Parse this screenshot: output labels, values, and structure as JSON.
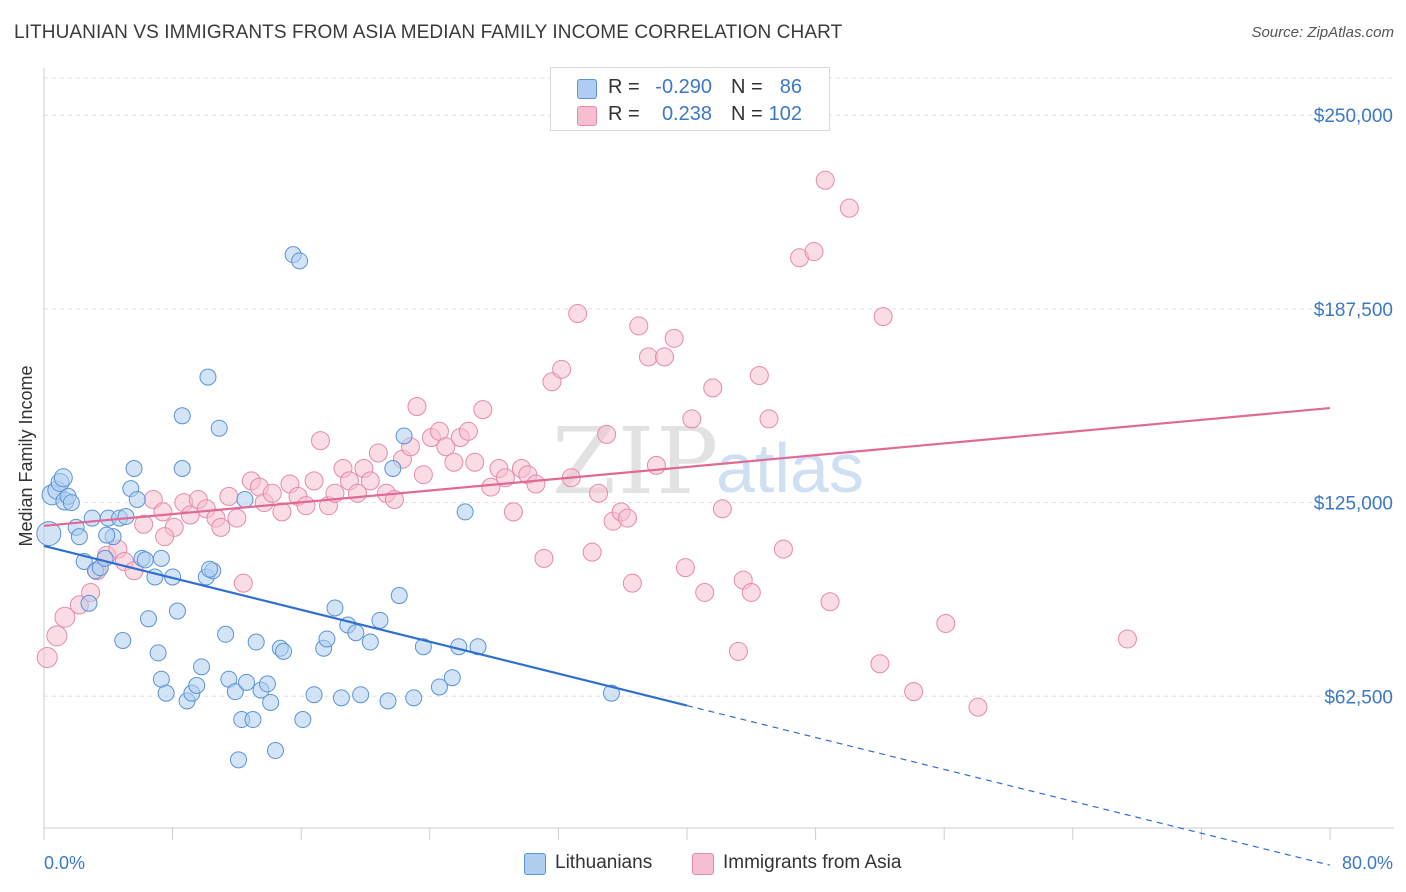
{
  "title": "LITHUANIAN VS IMMIGRANTS FROM ASIA MEDIAN FAMILY INCOME CORRELATION CHART",
  "source": "Source: ZipAtlas.com",
  "watermark": {
    "zip": "ZIP",
    "atlas": "atlas"
  },
  "legend_top": [
    {
      "r_label": "R =",
      "r_value": "-0.290",
      "n_label": "N =",
      "n_value": "86",
      "color": "#aecdf0"
    },
    {
      "r_label": "R =",
      "r_value": "0.238",
      "n_label": "N =",
      "n_value": "102",
      "color": "#f6bfd0"
    }
  ],
  "legend_bottom": [
    {
      "label": "Lithuanians",
      "color": "#aecdf0"
    },
    {
      "label": "Immigrants from Asia",
      "color": "#f6bfd0"
    }
  ],
  "chart_data": {
    "type": "scatter",
    "title": "LITHUANIAN VS IMMIGRANTS FROM ASIA MEDIAN FAMILY INCOME CORRELATION CHART",
    "ylabel": "Median Family Income",
    "xlabel": "",
    "xlim": [
      0,
      80
    ],
    "ylim": [
      20000,
      262000
    ],
    "x_tick_labels": [
      "0.0%",
      "80.0%"
    ],
    "y_ticks": [
      62500,
      125000,
      187500,
      250000
    ],
    "y_tick_labels": [
      "$62,500",
      "$125,000",
      "$187,500",
      "$250,000"
    ],
    "grid": "horizontal dashed",
    "legend_position": "top-center",
    "colors": {
      "lith_fill": "#aecdf0",
      "lith_stroke": "#5b93d6",
      "lith_line": "#2f6fd0",
      "asia_fill": "#f6bfd0",
      "asia_stroke": "#e68aaa",
      "asia_line": "#e06a94"
    },
    "series": [
      {
        "name": "Lithuanians",
        "r": -0.29,
        "n": 86,
        "trend": {
          "x0": 0,
          "y0": 111000,
          "x1": 40,
          "y1": 59500,
          "dash_to_x": 80,
          "dash_to_y": 8000
        },
        "points": [
          [
            0.3,
            115000,
            12
          ],
          [
            0.5,
            127500,
            10
          ],
          [
            0.8,
            129000,
            9
          ],
          [
            1.0,
            131500,
            9
          ],
          [
            1.2,
            133000,
            9
          ],
          [
            1.3,
            125500,
            9
          ],
          [
            1.5,
            127000,
            8
          ],
          [
            1.7,
            125000,
            8
          ],
          [
            2.0,
            117000,
            8
          ],
          [
            2.2,
            114000,
            8
          ],
          [
            2.5,
            106000,
            8
          ],
          [
            2.8,
            92500,
            8
          ],
          [
            3.0,
            120000,
            8
          ],
          [
            3.2,
            103000,
            8
          ],
          [
            3.5,
            104000,
            8
          ],
          [
            3.8,
            107000,
            8
          ],
          [
            4.0,
            120000,
            8
          ],
          [
            4.3,
            114000,
            8
          ],
          [
            4.7,
            120000,
            8
          ],
          [
            4.9,
            80500,
            8
          ],
          [
            5.4,
            129500,
            8
          ],
          [
            5.6,
            136000,
            8
          ],
          [
            5.8,
            126000,
            8
          ],
          [
            6.1,
            107000,
            8
          ],
          [
            6.3,
            106500,
            8
          ],
          [
            6.5,
            87500,
            8
          ],
          [
            6.9,
            101000,
            8
          ],
          [
            7.1,
            76500,
            8
          ],
          [
            7.3,
            68000,
            8
          ],
          [
            7.6,
            63500,
            8
          ],
          [
            8.0,
            101000,
            8
          ],
          [
            8.3,
            90000,
            8
          ],
          [
            8.6,
            153000,
            8
          ],
          [
            8.9,
            61000,
            8
          ],
          [
            9.2,
            63500,
            8
          ],
          [
            9.5,
            66000,
            8
          ],
          [
            9.8,
            72000,
            8
          ],
          [
            10.1,
            101000,
            8
          ],
          [
            10.2,
            165500,
            8
          ],
          [
            10.5,
            103000,
            8
          ],
          [
            10.9,
            149000,
            8
          ],
          [
            11.3,
            82500,
            8
          ],
          [
            11.5,
            68000,
            8
          ],
          [
            11.9,
            64000,
            8
          ],
          [
            12.1,
            42000,
            8
          ],
          [
            12.3,
            55000,
            8
          ],
          [
            12.6,
            67000,
            8
          ],
          [
            13.0,
            55000,
            8
          ],
          [
            13.2,
            80000,
            8
          ],
          [
            13.5,
            64500,
            8
          ],
          [
            13.9,
            66500,
            8
          ],
          [
            14.1,
            60500,
            8
          ],
          [
            14.4,
            45000,
            8
          ],
          [
            14.7,
            78000,
            8
          ],
          [
            14.9,
            77000,
            8
          ],
          [
            15.5,
            205000,
            8
          ],
          [
            15.9,
            203000,
            8
          ],
          [
            16.1,
            55000,
            8
          ],
          [
            16.8,
            63000,
            8
          ],
          [
            17.4,
            78000,
            8
          ],
          [
            17.6,
            81000,
            8
          ],
          [
            18.1,
            91000,
            8
          ],
          [
            18.5,
            62000,
            8
          ],
          [
            18.9,
            85500,
            8
          ],
          [
            19.4,
            83000,
            8
          ],
          [
            19.7,
            63000,
            8
          ],
          [
            20.3,
            80000,
            8
          ],
          [
            20.9,
            87000,
            8
          ],
          [
            21.4,
            61000,
            8
          ],
          [
            21.7,
            136000,
            8
          ],
          [
            22.1,
            95000,
            8
          ],
          [
            22.4,
            146500,
            8
          ],
          [
            23.0,
            62000,
            8
          ],
          [
            23.6,
            78500,
            8
          ],
          [
            24.6,
            65500,
            8
          ],
          [
            25.4,
            68500,
            8
          ],
          [
            25.8,
            78500,
            8
          ],
          [
            26.2,
            122000,
            8
          ],
          [
            27.0,
            78500,
            8
          ],
          [
            35.3,
            63500,
            8
          ],
          [
            7.3,
            107000,
            8
          ],
          [
            5.1,
            120500,
            8
          ],
          [
            3.9,
            114500,
            8
          ],
          [
            8.6,
            136000,
            8
          ],
          [
            10.3,
            103500,
            8
          ],
          [
            12.5,
            126000,
            8
          ]
        ]
      },
      {
        "name": "Immigrants from Asia",
        "r": 0.238,
        "n": 102,
        "trend": {
          "x0": 0,
          "y0": 117500,
          "x1": 80,
          "y1": 155500
        },
        "points": [
          [
            0.2,
            75000,
            10
          ],
          [
            0.8,
            82000,
            10
          ],
          [
            1.3,
            88000,
            10
          ],
          [
            2.2,
            92000,
            9
          ],
          [
            2.9,
            96000,
            9
          ],
          [
            3.3,
            103000,
            9
          ],
          [
            3.9,
            108000,
            9
          ],
          [
            4.6,
            110000,
            9
          ],
          [
            5.0,
            106000,
            9
          ],
          [
            5.6,
            103000,
            9
          ],
          [
            6.2,
            118000,
            9
          ],
          [
            6.8,
            126000,
            9
          ],
          [
            7.4,
            122000,
            9
          ],
          [
            8.1,
            117000,
            9
          ],
          [
            8.7,
            125000,
            9
          ],
          [
            9.1,
            121000,
            9
          ],
          [
            9.6,
            126000,
            9
          ],
          [
            10.1,
            123000,
            9
          ],
          [
            10.7,
            120000,
            9
          ],
          [
            11.0,
            117000,
            9
          ],
          [
            11.5,
            127000,
            9
          ],
          [
            12.0,
            120000,
            9
          ],
          [
            12.4,
            99000,
            9
          ],
          [
            12.9,
            132000,
            9
          ],
          [
            13.4,
            130000,
            9
          ],
          [
            13.7,
            125000,
            9
          ],
          [
            14.2,
            128000,
            9
          ],
          [
            14.8,
            122000,
            9
          ],
          [
            15.3,
            131000,
            9
          ],
          [
            15.8,
            127000,
            9
          ],
          [
            16.3,
            124000,
            9
          ],
          [
            16.8,
            132000,
            9
          ],
          [
            17.2,
            145000,
            9
          ],
          [
            17.7,
            124000,
            9
          ],
          [
            18.1,
            128000,
            9
          ],
          [
            18.6,
            136000,
            9
          ],
          [
            19.0,
            132000,
            9
          ],
          [
            19.5,
            128000,
            9
          ],
          [
            19.9,
            136000,
            9
          ],
          [
            20.3,
            132000,
            9
          ],
          [
            20.8,
            141000,
            9
          ],
          [
            21.3,
            128000,
            9
          ],
          [
            21.8,
            126000,
            9
          ],
          [
            22.3,
            139000,
            9
          ],
          [
            22.8,
            143000,
            9
          ],
          [
            23.2,
            156000,
            9
          ],
          [
            23.6,
            134000,
            9
          ],
          [
            24.1,
            146000,
            9
          ],
          [
            24.6,
            148000,
            9
          ],
          [
            25.0,
            143000,
            9
          ],
          [
            25.5,
            138000,
            9
          ],
          [
            25.9,
            146000,
            9
          ],
          [
            26.4,
            148000,
            9
          ],
          [
            26.8,
            138000,
            9
          ],
          [
            27.3,
            155000,
            9
          ],
          [
            27.8,
            130000,
            9
          ],
          [
            28.3,
            136000,
            9
          ],
          [
            28.7,
            133000,
            9
          ],
          [
            29.2,
            122000,
            9
          ],
          [
            29.7,
            136000,
            9
          ],
          [
            30.1,
            134000,
            9
          ],
          [
            30.6,
            131000,
            9
          ],
          [
            31.1,
            107000,
            9
          ],
          [
            31.6,
            164000,
            9
          ],
          [
            32.2,
            168000,
            9
          ],
          [
            32.8,
            133000,
            9
          ],
          [
            33.2,
            186000,
            9
          ],
          [
            34.1,
            109000,
            9
          ],
          [
            34.5,
            128000,
            9
          ],
          [
            35.0,
            147000,
            9
          ],
          [
            35.4,
            119000,
            9
          ],
          [
            35.9,
            122000,
            9
          ],
          [
            36.6,
            99000,
            9
          ],
          [
            37.0,
            182000,
            9
          ],
          [
            37.6,
            172000,
            9
          ],
          [
            38.1,
            137000,
            9
          ],
          [
            38.6,
            172000,
            9
          ],
          [
            39.2,
            178000,
            9
          ],
          [
            39.9,
            104000,
            9
          ],
          [
            40.3,
            152000,
            9
          ],
          [
            41.1,
            96000,
            9
          ],
          [
            41.6,
            162000,
            9
          ],
          [
            42.2,
            123000,
            9
          ],
          [
            43.2,
            77000,
            9
          ],
          [
            43.5,
            100000,
            9
          ],
          [
            44.0,
            96000,
            9
          ],
          [
            44.5,
            166000,
            9
          ],
          [
            45.1,
            152000,
            9
          ],
          [
            46.0,
            110000,
            9
          ],
          [
            47.0,
            204000,
            9
          ],
          [
            47.9,
            206000,
            9
          ],
          [
            48.6,
            229000,
            9
          ],
          [
            50.1,
            220000,
            9
          ],
          [
            52.0,
            73000,
            9
          ],
          [
            52.2,
            185000,
            9
          ],
          [
            54.1,
            64000,
            9
          ],
          [
            56.1,
            86000,
            9
          ],
          [
            58.1,
            59000,
            9
          ],
          [
            67.4,
            81000,
            9
          ],
          [
            7.5,
            114000,
            9
          ],
          [
            36.3,
            120000,
            9
          ],
          [
            48.9,
            93000,
            9
          ]
        ]
      }
    ]
  }
}
